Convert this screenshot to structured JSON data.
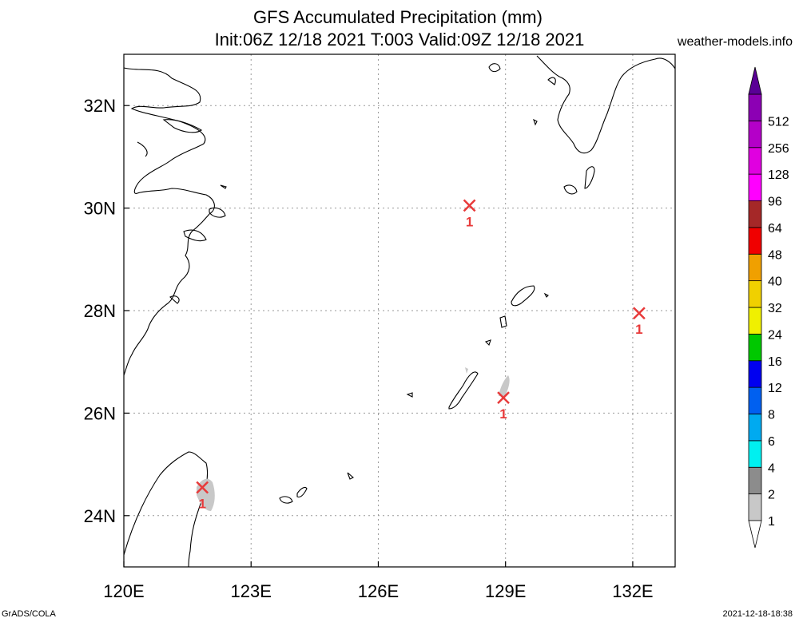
{
  "title_line1": "GFS Accumulated Precipitation (mm)",
  "title_line2": "Init:06Z 12/18 2021 T:003 Valid:09Z 12/18 2021",
  "site": "weather-models.info",
  "credit": "GrADS/COLA",
  "timestamp": "2021-12-18-18:38",
  "map": {
    "lon_range": [
      120,
      133
    ],
    "lat_range": [
      23,
      33
    ],
    "lon_ticks": [
      {
        "value": 120,
        "label": "120E"
      },
      {
        "value": 123,
        "label": "123E"
      },
      {
        "value": 126,
        "label": "126E"
      },
      {
        "value": 129,
        "label": "129E"
      },
      {
        "value": 132,
        "label": "132E"
      }
    ],
    "lat_ticks": [
      {
        "value": 24,
        "label": "24N"
      },
      {
        "value": 26,
        "label": "26N"
      },
      {
        "value": 28,
        "label": "28N"
      },
      {
        "value": 30,
        "label": "30N"
      },
      {
        "value": 32,
        "label": "32N"
      }
    ],
    "markers": [
      {
        "lon": 128.15,
        "lat": 30.05,
        "label": "1"
      },
      {
        "lon": 132.15,
        "lat": 27.95,
        "label": "1"
      },
      {
        "lon": 128.95,
        "lat": 26.3,
        "label": "1"
      },
      {
        "lon": 121.85,
        "lat": 24.55,
        "label": "1"
      }
    ],
    "marker_color": "#e83a3a"
  },
  "colorbar": {
    "levels": [
      {
        "label": "1",
        "color": "#c8c8c8"
      },
      {
        "label": "2",
        "color": "#8c8c8c"
      },
      {
        "label": "4",
        "color": "#00f0f0"
      },
      {
        "label": "6",
        "color": "#00aaf0"
      },
      {
        "label": "8",
        "color": "#0060f0"
      },
      {
        "label": "12",
        "color": "#0000f0"
      },
      {
        "label": "16",
        "color": "#00c800"
      },
      {
        "label": "24",
        "color": "#f0f000"
      },
      {
        "label": "32",
        "color": "#f0d000"
      },
      {
        "label": "40",
        "color": "#f0a000"
      },
      {
        "label": "48",
        "color": "#f00000"
      },
      {
        "label": "64",
        "color": "#a52828"
      },
      {
        "label": "96",
        "color": "#ff00ff"
      },
      {
        "label": "128",
        "color": "#e000e0"
      },
      {
        "label": "256",
        "color": "#b400c8"
      },
      {
        "label": "512",
        "color": "#8c00b4"
      }
    ],
    "top_color": "#5a0096"
  }
}
